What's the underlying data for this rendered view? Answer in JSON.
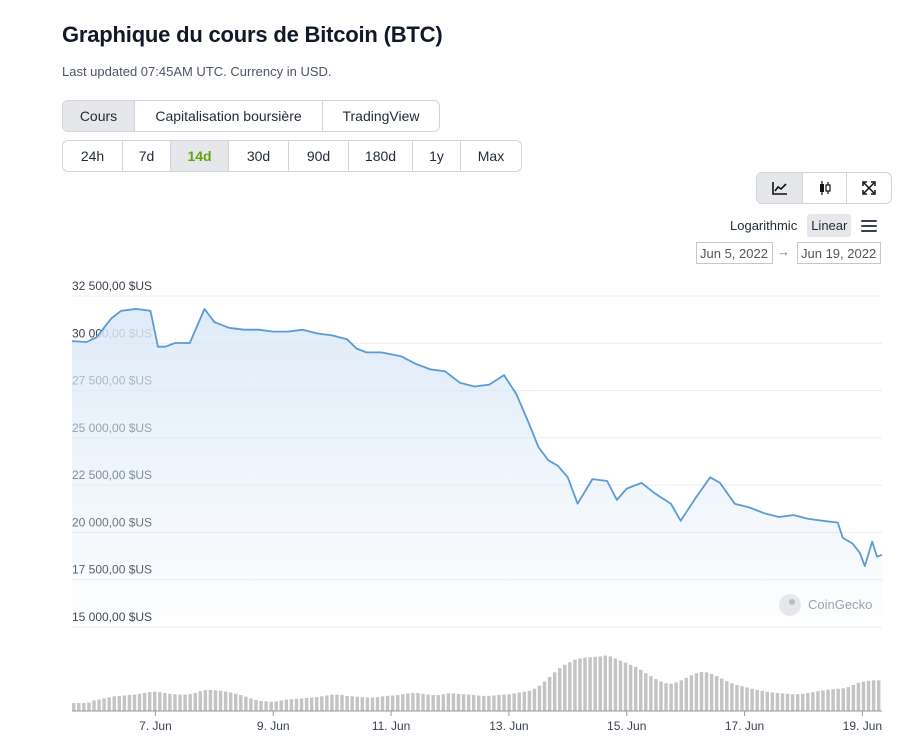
{
  "header": {
    "title": "Graphique du cours de Bitcoin (BTC)",
    "subtitle": "Last updated 07:45AM UTC. Currency in USD."
  },
  "tabs": [
    "Cours",
    "Capitalisation boursière",
    "TradingView"
  ],
  "ranges": [
    "24h",
    "7d",
    "14d",
    "30d",
    "90d",
    "180d",
    "1y",
    "Max"
  ],
  "scale": {
    "log_label": "Logarithmic",
    "linear_label": "Linear",
    "selected": "Linear"
  },
  "date_range": {
    "from": "Jun 5, 2022",
    "to": "Jun 19, 2022"
  },
  "watermark": "CoinGecko",
  "colors": {
    "line": "#5b9bd5",
    "area_top": "#dbe9f7",
    "volume": "#c4c4c4",
    "active_range": "#65a30d"
  },
  "chart_data": {
    "type": "line",
    "ylabel": "",
    "xlabel": "",
    "ylim": [
      15000,
      32500
    ],
    "yticks": [
      32500,
      30000,
      27500,
      25000,
      22500,
      20000,
      17500,
      15000
    ],
    "ytick_labels": [
      "32 500,00 $US",
      "30 000,00 $US",
      "27 500,00 $US",
      "25 000,00 $US",
      "22 500,00 $US",
      "20 000,00 $US",
      "17 500,00 $US",
      "15 000,00 $US"
    ],
    "xlim": [
      "2022-06-05T14:00",
      "2022-06-19T08:00"
    ],
    "xticks": [
      "2022-06-07",
      "2022-06-09",
      "2022-06-11",
      "2022-06-13",
      "2022-06-15",
      "2022-06-17",
      "2022-06-19"
    ],
    "xtick_labels": [
      "7. Jun",
      "9. Jun",
      "11. Jun",
      "13. Jun",
      "15. Jun",
      "17. Jun",
      "19. Jun"
    ],
    "grid": true,
    "series": [
      {
        "x": [
          "2022-06-05T14:00",
          "2022-06-05T20:00",
          "2022-06-06T00:00",
          "2022-06-06T06:00",
          "2022-06-06T10:00",
          "2022-06-06T16:00",
          "2022-06-06T22:00",
          "2022-06-07T01:00",
          "2022-06-07T04:00",
          "2022-06-07T08:00",
          "2022-06-07T14:00",
          "2022-06-07T20:00",
          "2022-06-08T00:00",
          "2022-06-08T06:00",
          "2022-06-08T12:00",
          "2022-06-08T18:00",
          "2022-06-09T00:00",
          "2022-06-09T06:00",
          "2022-06-09T12:00",
          "2022-06-09T18:00",
          "2022-06-10T00:00",
          "2022-06-10T06:00",
          "2022-06-10T10:00",
          "2022-06-10T14:00",
          "2022-06-10T20:00",
          "2022-06-11T04:00",
          "2022-06-11T10:00",
          "2022-06-11T16:00",
          "2022-06-11T22:00",
          "2022-06-12T04:00",
          "2022-06-12T10:00",
          "2022-06-12T16:00",
          "2022-06-12T22:00",
          "2022-06-13T03:00",
          "2022-06-13T08:00",
          "2022-06-13T12:00",
          "2022-06-13T16:00",
          "2022-06-13T20:00",
          "2022-06-14T00:00",
          "2022-06-14T04:00",
          "2022-06-14T10:00",
          "2022-06-14T16:00",
          "2022-06-14T20:00",
          "2022-06-15T00:00",
          "2022-06-15T06:00",
          "2022-06-15T12:00",
          "2022-06-15T18:00",
          "2022-06-15T22:00",
          "2022-06-16T04:00",
          "2022-06-16T10:00",
          "2022-06-16T14:00",
          "2022-06-16T20:00",
          "2022-06-17T02:00",
          "2022-06-17T08:00",
          "2022-06-17T14:00",
          "2022-06-17T20:00",
          "2022-06-18T02:00",
          "2022-06-18T08:00",
          "2022-06-18T14:00",
          "2022-06-18T16:00",
          "2022-06-18T20:00",
          "2022-06-18T23:00",
          "2022-06-19T01:00",
          "2022-06-19T04:00",
          "2022-06-19T06:00",
          "2022-06-19T08:00"
        ],
        "y": [
          29800,
          29750,
          30000,
          31000,
          31400,
          31500,
          31400,
          29500,
          29500,
          29700,
          29700,
          31500,
          30800,
          30500,
          30400,
          30400,
          30300,
          30300,
          30400,
          30200,
          30100,
          29900,
          29400,
          29200,
          29200,
          29000,
          28600,
          28300,
          28200,
          27600,
          27400,
          27500,
          28000,
          27000,
          25500,
          24200,
          23500,
          23200,
          22600,
          21200,
          22500,
          22400,
          21400,
          22000,
          22300,
          21700,
          21200,
          20300,
          21500,
          22600,
          22300,
          21200,
          21000,
          20700,
          20500,
          20600,
          20400,
          20300,
          20200,
          19400,
          19100,
          18600,
          17900,
          19200,
          18400,
          18500
        ]
      }
    ],
    "volume": {
      "relative_height": [
        0.38,
        0.38,
        0.38,
        0.4,
        0.5,
        0.55,
        0.6,
        0.65,
        0.7,
        0.72,
        0.74,
        0.76,
        0.78,
        0.82,
        0.86,
        0.9,
        0.92,
        0.9,
        0.86,
        0.82,
        0.8,
        0.78,
        0.78,
        0.8,
        0.86,
        0.94,
        1.0,
        1.0,
        0.98,
        0.96,
        0.92,
        0.88,
        0.82,
        0.76,
        0.68,
        0.6,
        0.52,
        0.48,
        0.46,
        0.44,
        0.46,
        0.5,
        0.54,
        0.56,
        0.58,
        0.6,
        0.62,
        0.64,
        0.66,
        0.7,
        0.74,
        0.78,
        0.78,
        0.76,
        0.72,
        0.7,
        0.68,
        0.66,
        0.64,
        0.64,
        0.66,
        0.7,
        0.72,
        0.74,
        0.76,
        0.8,
        0.84,
        0.86,
        0.86,
        0.82,
        0.78,
        0.76,
        0.76,
        0.8,
        0.84,
        0.84,
        0.82,
        0.8,
        0.78,
        0.76,
        0.74,
        0.72,
        0.72,
        0.74,
        0.76,
        0.78,
        0.8,
        0.84,
        0.88,
        0.92,
        0.96,
        1.06,
        1.2,
        1.4,
        1.62,
        1.84,
        2.04,
        2.2,
        2.32,
        2.44,
        2.5,
        2.54,
        2.56,
        2.58,
        2.6,
        2.64,
        2.6,
        2.5,
        2.4,
        2.3,
        2.2,
        2.1,
        1.96,
        1.8,
        1.66,
        1.52,
        1.4,
        1.32,
        1.3,
        1.36,
        1.46,
        1.58,
        1.7,
        1.8,
        1.86,
        1.84,
        1.76,
        1.66,
        1.54,
        1.42,
        1.32,
        1.24,
        1.18,
        1.12,
        1.06,
        1.0,
        0.96,
        0.92,
        0.88,
        0.86,
        0.84,
        0.82,
        0.8,
        0.8,
        0.82,
        0.86,
        0.9,
        0.94,
        0.98,
        1.02,
        1.04,
        1.06,
        1.08,
        1.14,
        1.24,
        1.34,
        1.4,
        1.44,
        1.46,
        1.46
      ]
    }
  }
}
